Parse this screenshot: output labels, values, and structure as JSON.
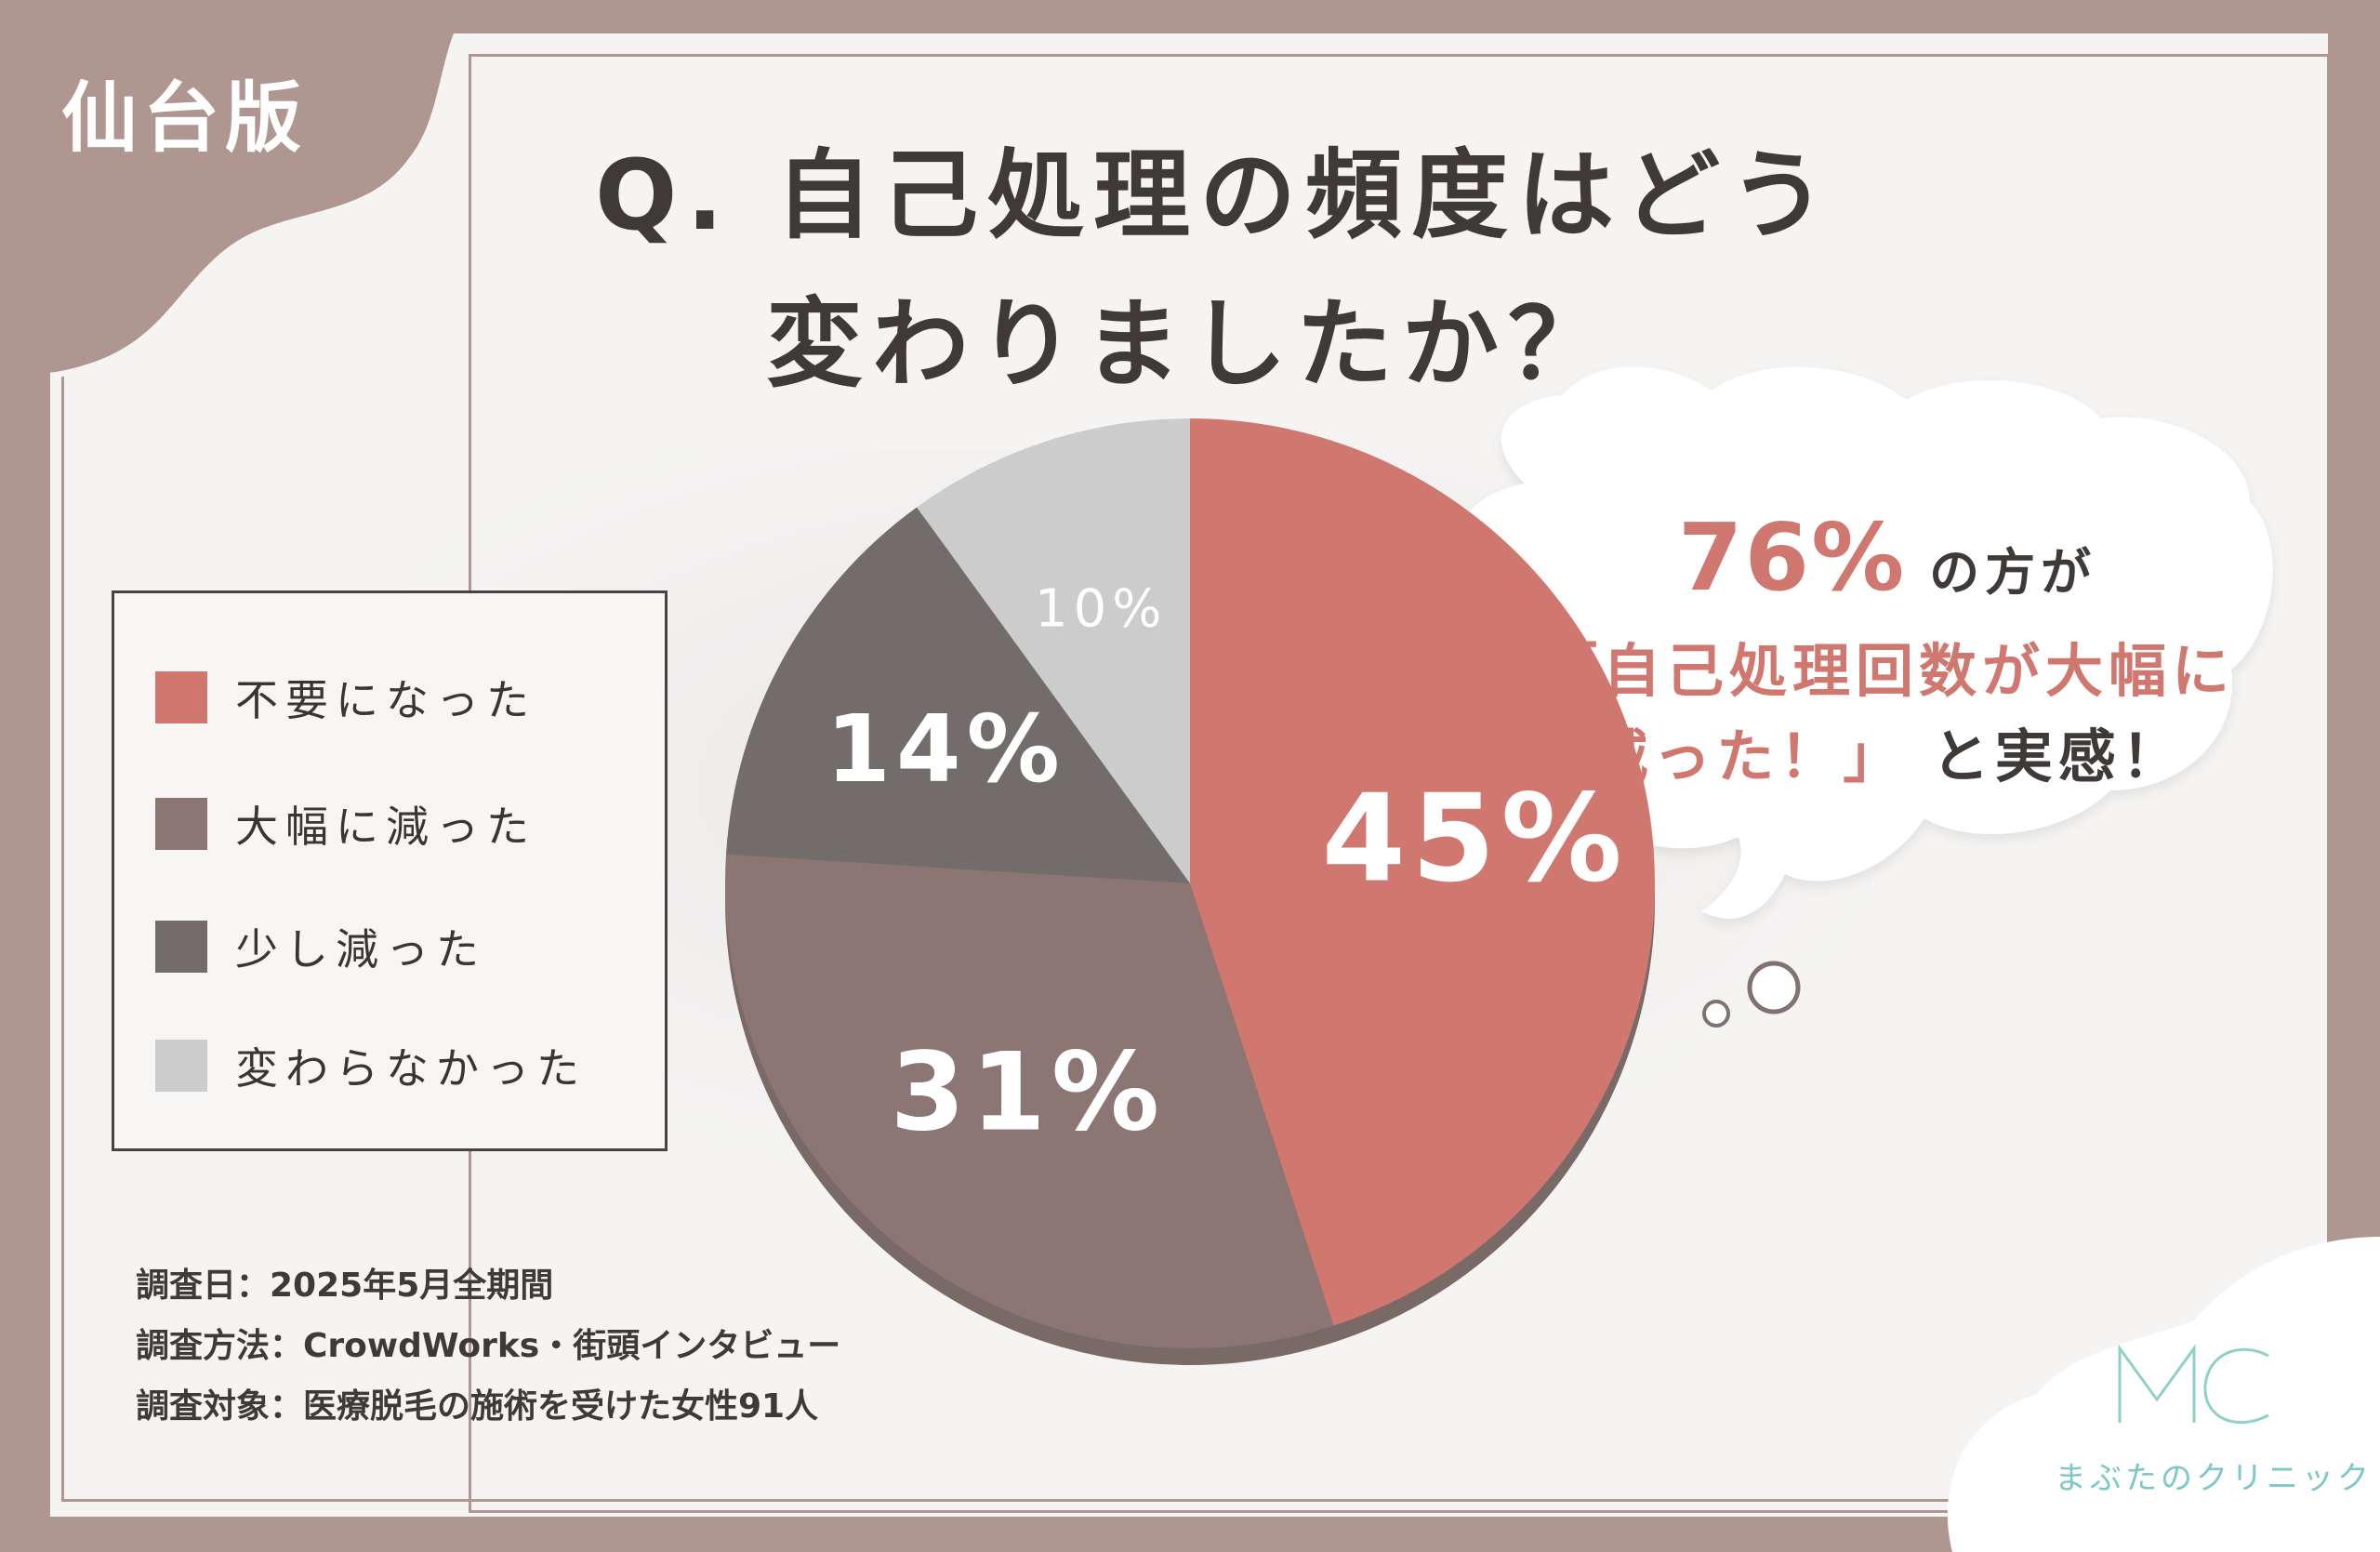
{
  "badge": "仙台版",
  "title": {
    "line1": "Q. 自己処理の頻度はどう",
    "line2": "変わりましたか？"
  },
  "legend": [
    {
      "label": "不要になった",
      "color": "#d0776f"
    },
    {
      "label": "大幅に減った",
      "color": "#8c7673"
    },
    {
      "label": "少し減った",
      "color": "#726c6b"
    },
    {
      "label": "変わらなかった",
      "color": "#cccccc"
    }
  ],
  "chart_data": {
    "type": "pie",
    "title": "Q. 自己処理の頻度はどう変わりましたか？",
    "categories": [
      "不要になった",
      "大幅に減った",
      "少し減った",
      "変わらなかった"
    ],
    "values": [
      45,
      31,
      14,
      10
    ],
    "value_labels": [
      "45%",
      "31%",
      "14%",
      "10%"
    ],
    "colors": [
      "#d0776f",
      "#8c7673",
      "#726c6b",
      "#cccccc"
    ],
    "legend_position": "left"
  },
  "callout": {
    "percent": "76%",
    "line1_rest": "の方が",
    "line2": "「自己処理回数が大幅に",
    "line3_pink": "減った！」",
    "line3_rest": "と実感！"
  },
  "survey": {
    "date": "調査日：2025年5月全期間",
    "method": "調査方法：CrowdWorks・街頭インタビュー",
    "target": "調査対象：医療脱毛の施術を受けた女性91人"
  },
  "logo": {
    "mark": "MC",
    "name": "まぶたのクリニック"
  }
}
